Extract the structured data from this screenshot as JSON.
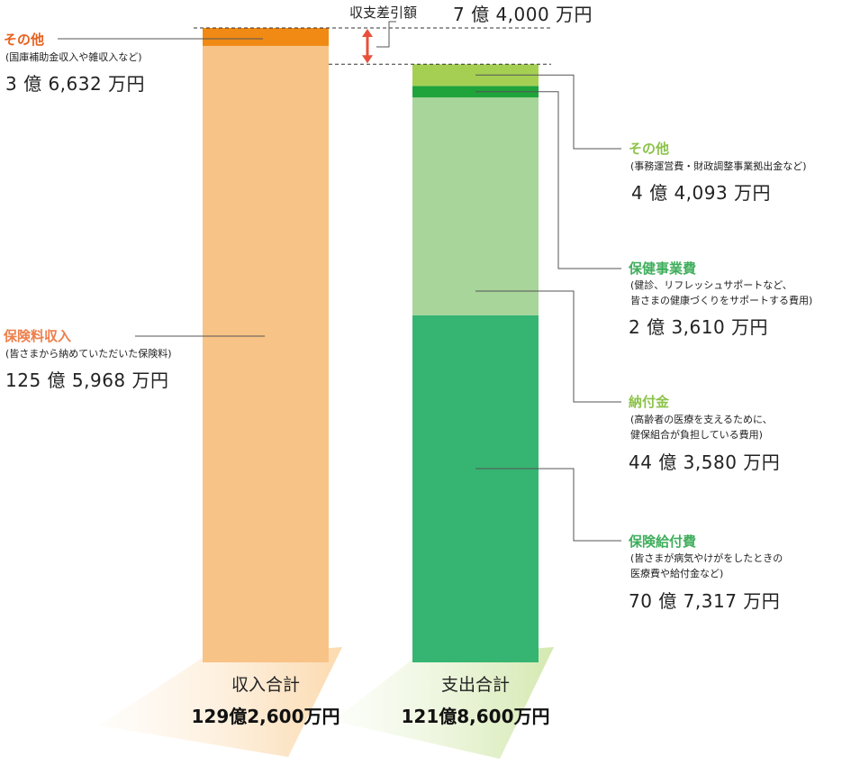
{
  "chart_data": {
    "type": "bar",
    "subtype": "stacked",
    "unit": "万円",
    "columns": [
      {
        "name": "収入合計",
        "total_label": "129億2,600万円",
        "total": 1292600,
        "segments": [
          {
            "name": "保険料収入",
            "note": "(皆さまから納めていただいた保険料)",
            "amount_text": "125 億 5,968 万円",
            "value": 1255968,
            "color": "#F8C386",
            "title_color": "#EE7F4B"
          },
          {
            "name": "その他",
            "note": "(国庫補助金収入や雑収入など)",
            "amount_text": "3 億 6,632 万円",
            "value": 36632,
            "color": "#F08A14",
            "title_color": "#E8601E"
          }
        ]
      },
      {
        "name": "支出合計",
        "total_label": "121億8,600万円",
        "total": 1218600,
        "segments": [
          {
            "name": "保険給付費",
            "note": "(皆さまが病気やけがをしたときの\n医療費や給付金など)",
            "amount_text": "70 億 7,317 万円",
            "value": 707317,
            "color": "#36B572",
            "title_color": "#3FAE5C"
          },
          {
            "name": "納付金",
            "note": "(高齢者の医療を支えるために、\n健保組合が負担している費用)",
            "amount_text": "44 億 3,580 万円",
            "value": 443580,
            "color": "#A8D59A",
            "title_color": "#8CC34A"
          },
          {
            "name": "保健事業費",
            "note": "(健診、リフレッシュサポートなど、\n皆さまの健康づくりをサポートする費用)",
            "amount_text": "2 億 3,610 万円",
            "value": 23610,
            "color": "#1FA33B",
            "title_color": "#3FAE5C"
          },
          {
            "name": "その他",
            "note": "(事務運営費・財政調整事業拠出金など)",
            "amount_text": "4 億 4,093 万円",
            "value": 44093,
            "color": "#A5CF53",
            "title_color": "#8CC34A"
          }
        ]
      }
    ],
    "difference": {
      "label": "収支差引額",
      "amount_text": "7 億 4,000 万円",
      "value": 74000,
      "arrow_color": "#E8503A"
    }
  }
}
